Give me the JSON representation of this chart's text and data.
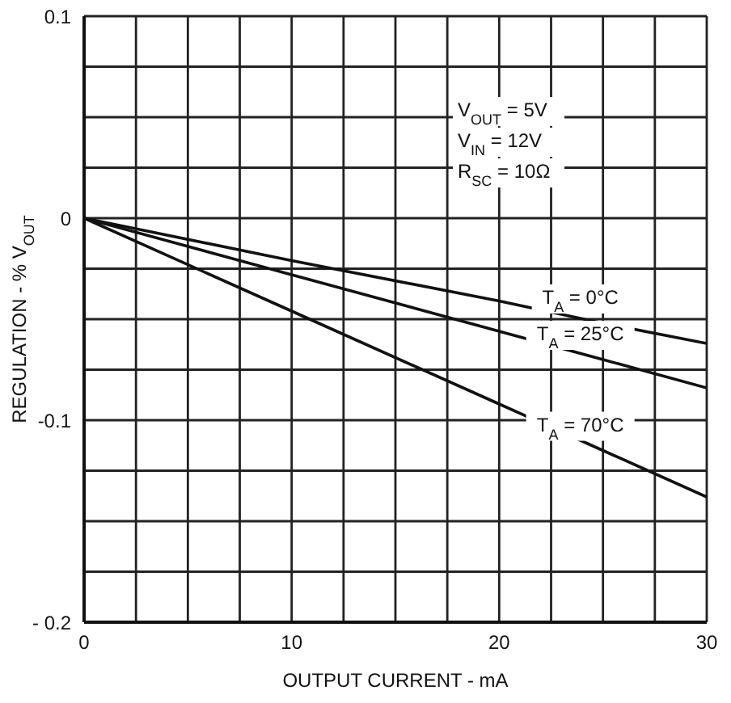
{
  "chart_data": {
    "type": "line",
    "xlabel": "OUTPUT CURRENT - mA",
    "ylabel": "REGULATION - % V$_{OUT}$",
    "x": [
      0,
      10,
      20,
      25,
      30
    ],
    "series": [
      {
        "name": "T$_{A}$ = 0°C",
        "color": "#111111",
        "values": [
          0,
          -0.021,
          -0.041,
          -0.052,
          -0.062
        ]
      },
      {
        "name": "T$_{A}$ = 25°C",
        "color": "#111111",
        "values": [
          0,
          -0.028,
          -0.056,
          -0.07,
          -0.084
        ]
      },
      {
        "name": "T$_{A}$ = 70°C",
        "color": "#111111",
        "values": [
          0,
          -0.046,
          -0.092,
          -0.115,
          -0.138
        ]
      }
    ],
    "xlim": [
      0,
      30
    ],
    "xticks": [
      0,
      {
        "value": 2.5,
        "label": null
      },
      {
        "value": 5,
        "label": null
      },
      {
        "value": 7.5,
        "label": null
      },
      10,
      {
        "value": 12.5,
        "label": null
      },
      {
        "value": 15,
        "label": null
      },
      {
        "value": 17.5,
        "label": null
      },
      20,
      {
        "value": 22.5,
        "label": null
      },
      {
        "value": 25,
        "label": null
      },
      {
        "value": 27.5,
        "label": null
      },
      30
    ],
    "ylim": [
      -0.2,
      0.1
    ],
    "yticks": [
      {
        "value": -0.2,
        "label": "- 0.2"
      },
      {
        "value": -0.175,
        "label": null
      },
      {
        "value": -0.15,
        "label": null
      },
      {
        "value": -0.125,
        "label": null
      },
      -0.1,
      {
        "value": -0.075,
        "label": null
      },
      {
        "value": -0.05,
        "label": null
      },
      {
        "value": -0.025,
        "label": null
      },
      0,
      {
        "value": 0.025,
        "label": null
      },
      {
        "value": 0.05,
        "label": null
      },
      {
        "value": 0.075,
        "label": null
      },
      0.1
    ],
    "annotations": [
      "V$_{OUT}$ = 5V",
      "V$_{IN}$ = 12V",
      "R$_{SC}$ = 10Ω"
    ],
    "grid": true,
    "legend": false,
    "marker": "none",
    "line_style": "solid"
  }
}
